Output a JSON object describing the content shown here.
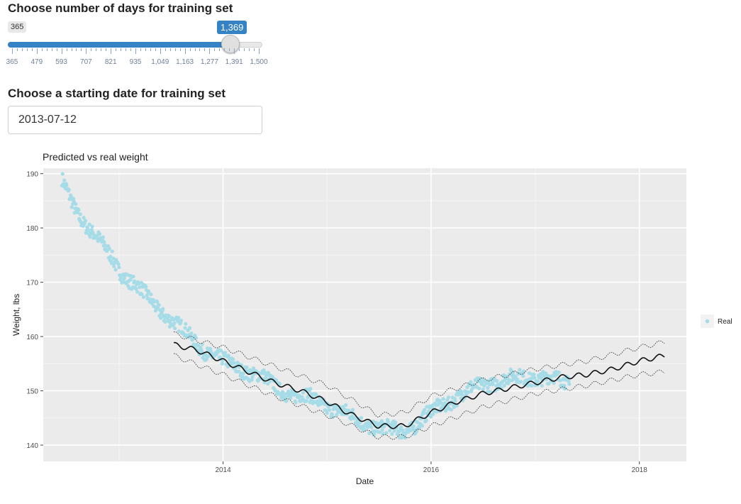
{
  "days_slider": {
    "label": "Choose number of days for training set",
    "min": 365,
    "max": 1500,
    "min_label": "365",
    "value": 1369,
    "value_label": "1,369",
    "tick_labels": [
      "365",
      "479",
      "593",
      "707",
      "821",
      "935",
      "1,049",
      "1,163",
      "1,277",
      "1,391",
      "1,500"
    ],
    "accent_color": "#3582c4"
  },
  "start_date": {
    "label": "Choose a starting date for training set",
    "value": "2013-07-12"
  },
  "chart_data": {
    "type": "scatter",
    "title": "Predicted vs real weight",
    "xlabel": "Date",
    "ylabel": "Weight, lbs",
    "x_tick_labels": [
      "2014",
      "2016",
      "2018"
    ],
    "y_tick_labels": [
      "140",
      "150",
      "160",
      "170",
      "180",
      "190"
    ],
    "xlim": [
      "2012-04-10",
      "2018-06-15"
    ],
    "ylim": [
      137,
      191
    ],
    "grid": true,
    "legend_position": "right",
    "series": [
      {
        "name": "Real",
        "kind": "points",
        "color": "#a6dce8",
        "points": [
          [
            "2012-06-15",
            188.5
          ],
          [
            "2012-07-15",
            185.5
          ],
          [
            "2012-08-15",
            182.5
          ],
          [
            "2012-09-15",
            180
          ],
          [
            "2012-10-15",
            178
          ],
          [
            "2012-11-15",
            176
          ],
          [
            "2012-12-15",
            174
          ],
          [
            "2013-01-15",
            171.5
          ],
          [
            "2013-02-15",
            170
          ],
          [
            "2013-03-15",
            168.5
          ],
          [
            "2013-04-15",
            167
          ],
          [
            "2013-05-15",
            165.5
          ],
          [
            "2013-06-15",
            164
          ],
          [
            "2013-07-15",
            162.5
          ],
          [
            "2013-08-15",
            161
          ],
          [
            "2013-09-15",
            159.5
          ],
          [
            "2013-10-15",
            158
          ],
          [
            "2013-11-15",
            157
          ],
          [
            "2013-12-15",
            156
          ],
          [
            "2014-01-15",
            155
          ],
          [
            "2014-03-15",
            154
          ],
          [
            "2014-05-15",
            152.5
          ],
          [
            "2014-07-15",
            150.5
          ],
          [
            "2014-09-15",
            149
          ],
          [
            "2014-11-15",
            148.5
          ],
          [
            "2015-01-15",
            147
          ],
          [
            "2015-03-15",
            145.5
          ],
          [
            "2015-05-15",
            144
          ],
          [
            "2015-07-15",
            143
          ],
          [
            "2015-09-15",
            142.5
          ],
          [
            "2015-11-15",
            144
          ],
          [
            "2016-01-15",
            146.5
          ],
          [
            "2016-03-15",
            148.5
          ],
          [
            "2016-05-15",
            150
          ],
          [
            "2016-07-15",
            151.5
          ],
          [
            "2016-09-15",
            152
          ],
          [
            "2016-11-15",
            152.5
          ],
          [
            "2017-01-15",
            152.5
          ],
          [
            "2017-03-15",
            152
          ],
          [
            "2017-05-01",
            151.5
          ]
        ]
      },
      {
        "name": "",
        "kind": "line",
        "color": "#111111",
        "points": [
          [
            "2013-07-12",
            158.5
          ],
          [
            "2013-10-01",
            157.5
          ],
          [
            "2014-01-01",
            155.5
          ],
          [
            "2014-04-01",
            153.5
          ],
          [
            "2014-07-01",
            151.5
          ],
          [
            "2014-10-01",
            150
          ],
          [
            "2015-01-01",
            148
          ],
          [
            "2015-04-01",
            145.5
          ],
          [
            "2015-07-01",
            143.5
          ],
          [
            "2015-10-01",
            143.5
          ],
          [
            "2016-01-01",
            146
          ],
          [
            "2016-04-01",
            148
          ],
          [
            "2016-07-01",
            149.5
          ],
          [
            "2016-10-01",
            150.5
          ],
          [
            "2017-01-01",
            151.5
          ],
          [
            "2017-04-01",
            152.5
          ],
          [
            "2017-07-01",
            153
          ],
          [
            "2017-10-01",
            154
          ],
          [
            "2018-01-01",
            155.5
          ],
          [
            "2018-04-01",
            156.5
          ]
        ]
      },
      {
        "name": "",
        "kind": "band-upper",
        "color": "#333333",
        "points": [
          [
            "2013-07-12",
            160.5
          ],
          [
            "2014-01-01",
            158
          ],
          [
            "2014-07-01",
            154.5
          ],
          [
            "2015-01-01",
            151
          ],
          [
            "2015-07-01",
            145.5
          ],
          [
            "2015-10-01",
            146
          ],
          [
            "2016-01-01",
            149
          ],
          [
            "2016-07-01",
            152
          ],
          [
            "2017-01-01",
            154
          ],
          [
            "2017-07-01",
            155.5
          ],
          [
            "2018-01-01",
            158
          ],
          [
            "2018-04-01",
            159
          ]
        ]
      },
      {
        "name": "",
        "kind": "band-lower",
        "color": "#333333",
        "points": [
          [
            "2013-07-12",
            156.5
          ],
          [
            "2014-01-01",
            153
          ],
          [
            "2014-07-01",
            149
          ],
          [
            "2015-01-01",
            145.5
          ],
          [
            "2015-07-01",
            141.5
          ],
          [
            "2015-10-01",
            141.5
          ],
          [
            "2016-01-01",
            143.5
          ],
          [
            "2016-07-01",
            147
          ],
          [
            "2017-01-01",
            149.5
          ],
          [
            "2017-07-01",
            151
          ],
          [
            "2018-01-01",
            153
          ],
          [
            "2018-04-01",
            153.5
          ]
        ]
      }
    ]
  }
}
